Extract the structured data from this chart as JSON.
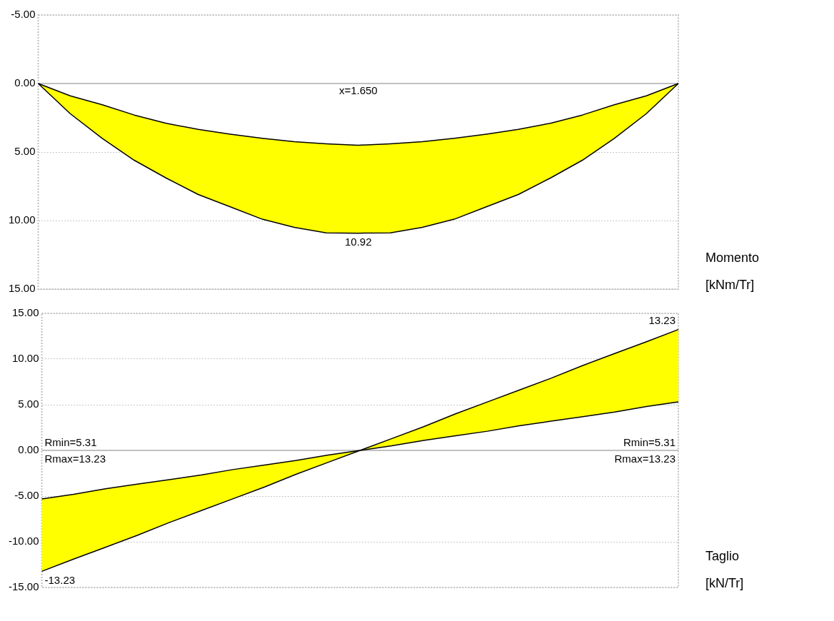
{
  "chart_data": [
    {
      "type": "area",
      "ylabel": "Momento [kNm/Tr]",
      "categories": [
        null,
        null,
        null,
        null,
        null,
        null,
        null,
        null,
        null,
        null,
        null,
        null,
        null,
        null,
        null,
        null,
        null,
        null,
        null,
        null,
        null
      ],
      "series": [
        {
          "type": "line",
          "color": "#000000",
          "values": [
            0,
            0.9,
            1.55,
            2.3,
            2.9,
            3.35,
            3.7,
            4.0,
            4.25,
            4.4,
            4.5,
            4.4,
            4.25,
            4.0,
            3.7,
            3.35,
            2.9,
            2.3,
            1.55,
            0.9,
            0
          ]
        },
        {
          "color": "#ffff00",
          "values": [
            0,
            2.2,
            4.0,
            5.6,
            6.9,
            8.1,
            9.0,
            9.9,
            10.5,
            10.9,
            10.92,
            10.9,
            10.5,
            9.9,
            9.0,
            8.1,
            6.9,
            5.6,
            4.0,
            2.2,
            0
          ],
          "value_labels": [
            null,
            null,
            null,
            null,
            null,
            null,
            null,
            null,
            null,
            null,
            "10.92",
            null,
            null,
            null,
            null,
            null,
            null,
            null,
            null,
            null,
            null
          ]
        }
      ],
      "ylim": [
        15,
        -5
      ],
      "yticks": [
        {
          "value": -5,
          "label": "-5.00"
        },
        {
          "value": 0,
          "label": "0.00"
        },
        {
          "value": 5,
          "label": "5.00"
        },
        {
          "value": 10,
          "label": "10.00"
        },
        {
          "value": 15,
          "label": "15.00"
        }
      ],
      "annotations": [
        "x=1.650"
      ],
      "grid": "y",
      "legend": false,
      "tick_labels": "y"
    },
    {
      "type": "area",
      "ylabel": "Taglio [kN/Tr]",
      "categories": [
        null,
        null,
        null,
        null,
        null,
        null,
        null,
        null,
        null,
        null,
        null,
        null,
        null,
        null,
        null,
        null,
        null,
        null,
        null,
        null,
        null
      ],
      "series": [
        {
          "type": "line",
          "color": "#000000",
          "values": [
            -5.31,
            -4.8,
            -4.2,
            -3.7,
            -3.2,
            -2.7,
            -2.1,
            -1.6,
            -1.1,
            -0.5,
            0,
            0.5,
            1.1,
            1.6,
            2.1,
            2.7,
            3.2,
            3.7,
            4.2,
            4.8,
            5.31
          ]
        },
        {
          "color": "#ffff00",
          "values": [
            -13.23,
            -11.9,
            -10.6,
            -9.3,
            -7.9,
            -6.6,
            -5.3,
            -4.0,
            -2.6,
            -1.3,
            0,
            1.3,
            2.6,
            4.0,
            5.3,
            6.6,
            7.9,
            9.3,
            10.6,
            11.9,
            13.23
          ],
          "value_labels": [
            "-13.23",
            null,
            null,
            null,
            null,
            null,
            null,
            null,
            null,
            null,
            null,
            null,
            null,
            null,
            null,
            null,
            null,
            null,
            null,
            null,
            "13.23"
          ]
        }
      ],
      "ylim": [
        -15,
        15
      ],
      "yticks": [
        {
          "value": -15,
          "label": "-15.00"
        },
        {
          "value": -10,
          "label": "-10.00"
        },
        {
          "value": -5,
          "label": "-5.00"
        },
        {
          "value": 0,
          "label": "0.00"
        },
        {
          "value": 5,
          "label": "5.00"
        },
        {
          "value": 10,
          "label": "10.00"
        },
        {
          "value": 15,
          "label": "15.00"
        }
      ],
      "annotations": [
        "Rmin=5.31",
        "Rmax=13.23",
        "Rmin=5.31",
        "Rmax=13.23"
      ],
      "grid": "y",
      "legend": false,
      "tick_labels": "y"
    }
  ]
}
